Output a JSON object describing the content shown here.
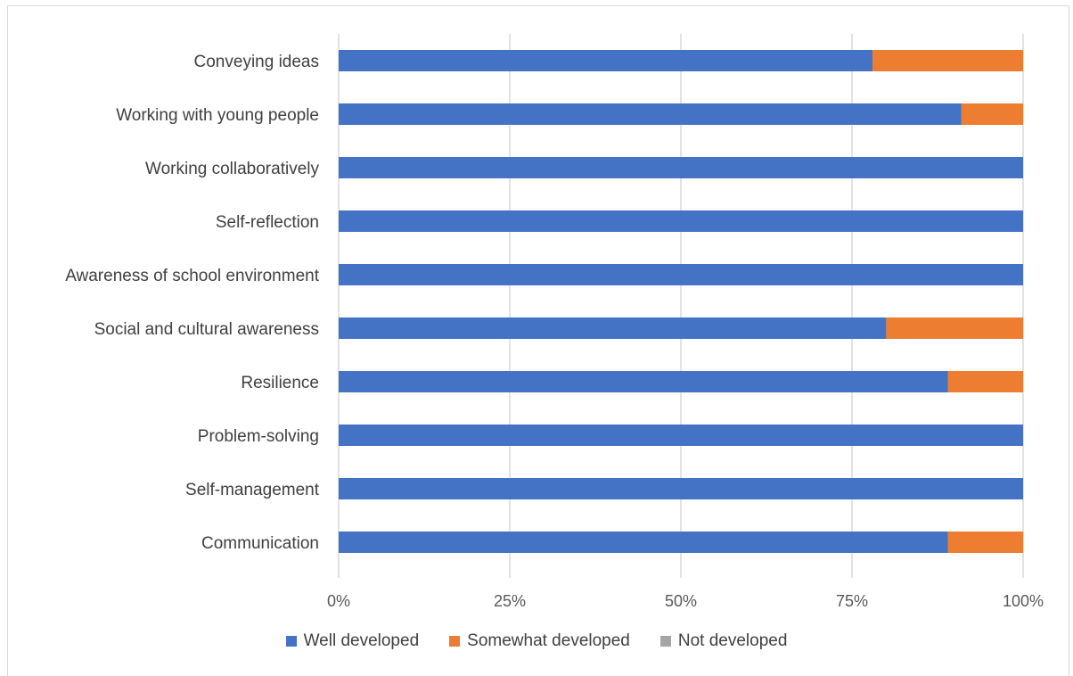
{
  "chart_data": {
    "type": "bar",
    "orientation": "horizontal",
    "stacked": "percent",
    "categories": [
      "Conveying ideas",
      "Working with young people",
      "Working collaboratively",
      "Self-reflection",
      "Awareness of school environment",
      "Social and cultural awareness",
      "Resilience",
      "Problem-solving",
      "Self-management",
      "Communication"
    ],
    "series": [
      {
        "name": "Well developed",
        "color": "#4472C4",
        "values": [
          78,
          91,
          100,
          100,
          100,
          80,
          89,
          100,
          100,
          89
        ]
      },
      {
        "name": "Somewhat developed",
        "color": "#ED7D31",
        "values": [
          22,
          9,
          0,
          0,
          0,
          20,
          11,
          0,
          0,
          11
        ]
      },
      {
        "name": "Not developed",
        "color": "#A5A5A5",
        "values": [
          0,
          0,
          0,
          0,
          0,
          0,
          0,
          0,
          0,
          0
        ]
      }
    ],
    "xticks": [
      "0%",
      "25%",
      "50%",
      "75%",
      "100%"
    ],
    "xlim": [
      0,
      100
    ],
    "grid": true,
    "legend_position": "bottom"
  }
}
